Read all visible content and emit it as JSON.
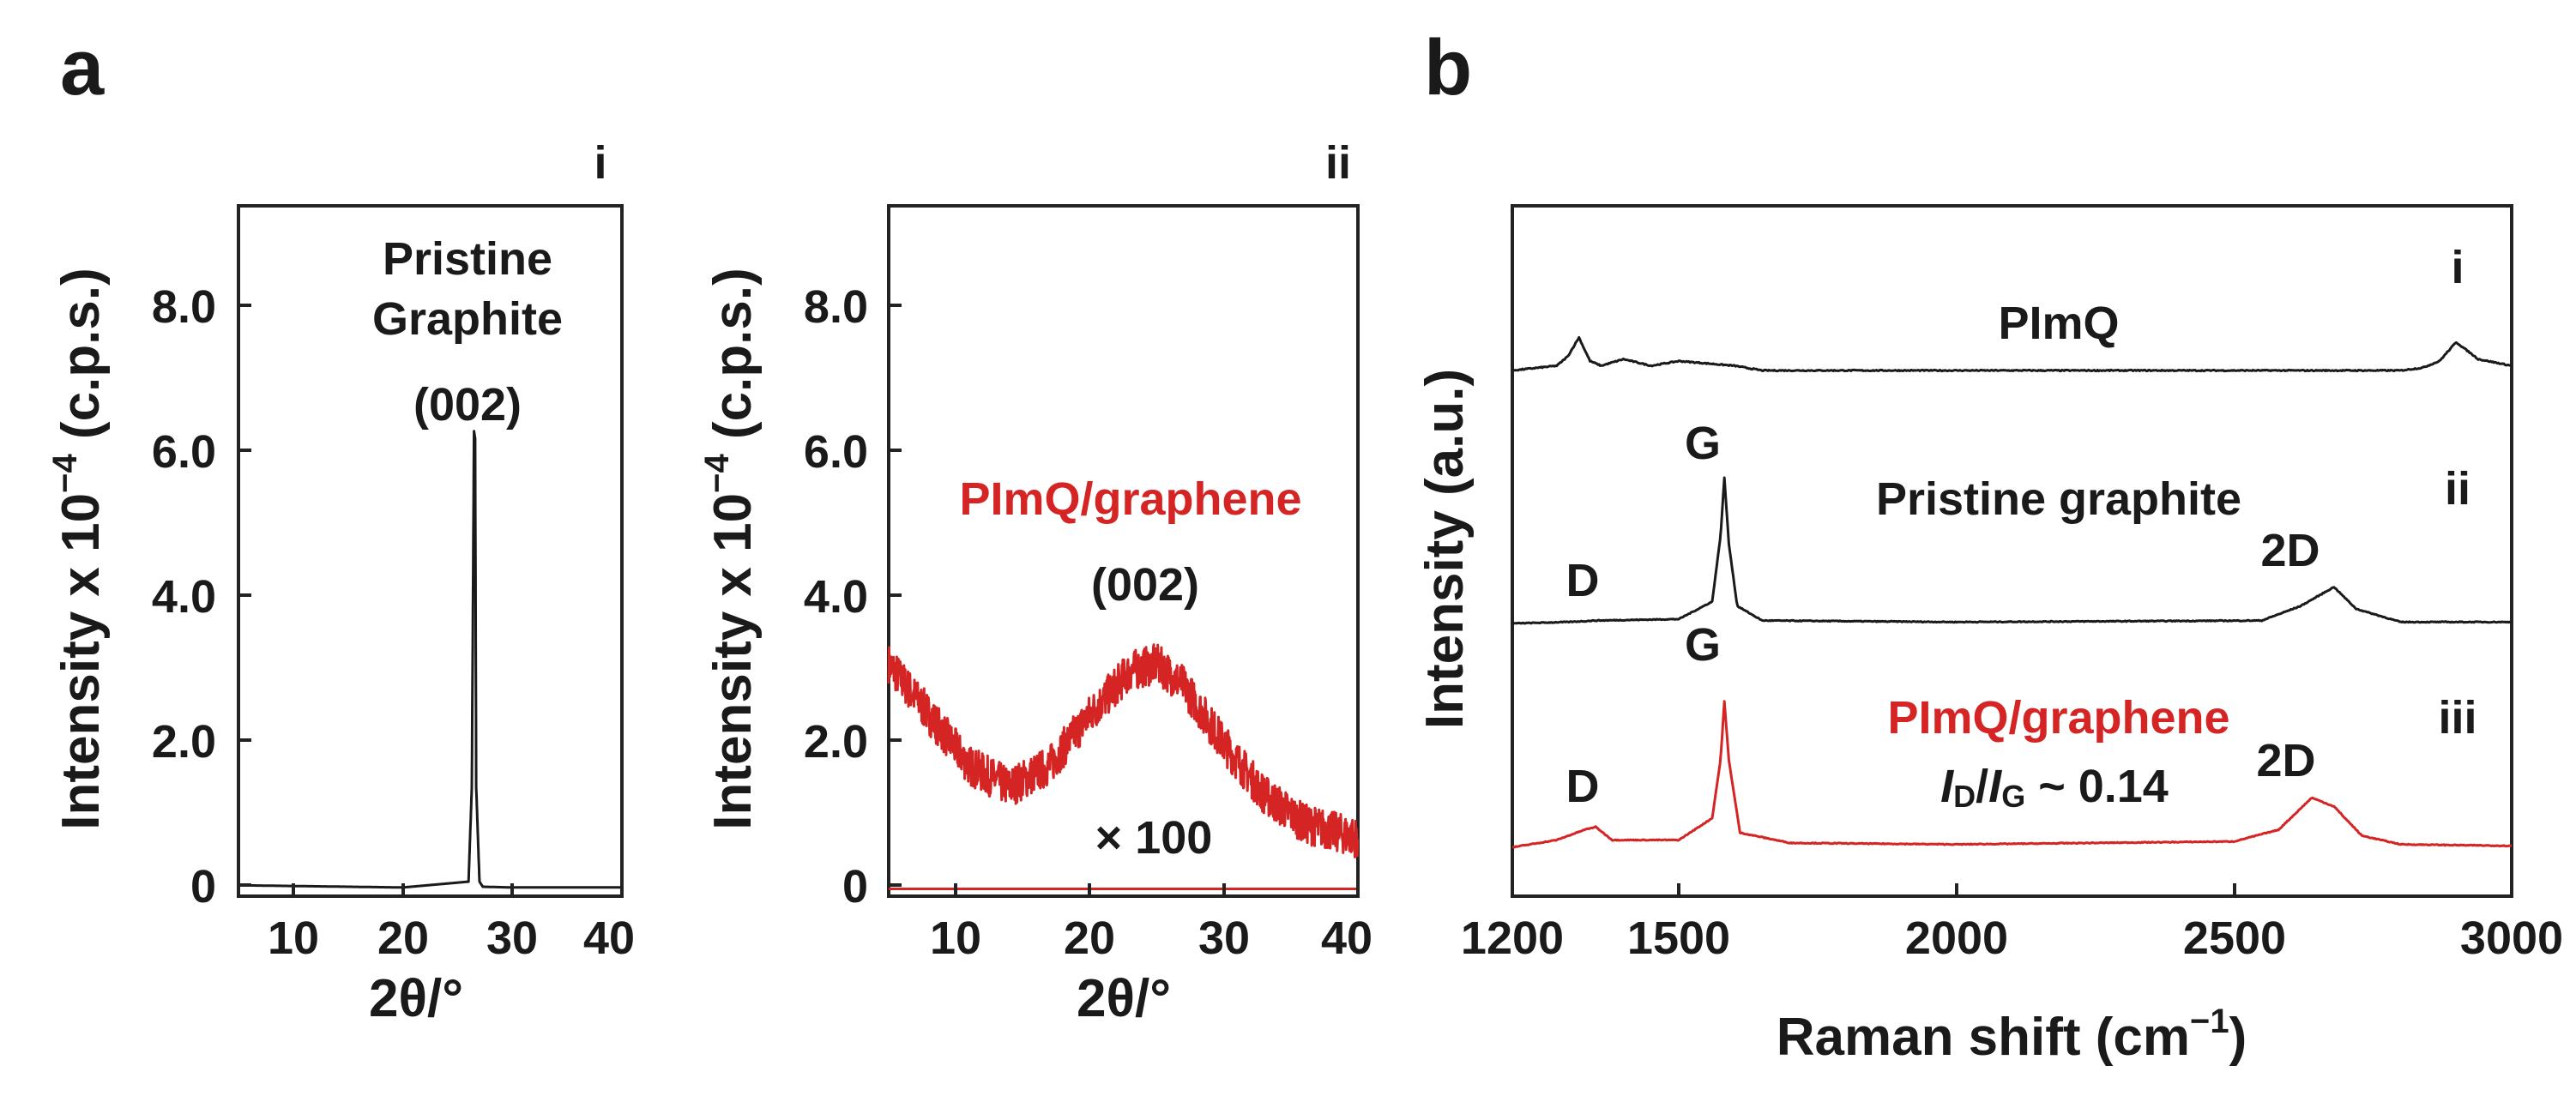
{
  "panels": {
    "a": {
      "letter": "a",
      "i": {
        "roman": "i",
        "xlabel": "2θ/°",
        "ylabel": "Intensity x 10",
        "ylabel_exp": "−4",
        "ylabel_unit": " (c.p.s.)",
        "x_ticks": [
          "10",
          "20",
          "30",
          "40"
        ],
        "y_ticks": [
          "0",
          "2.0",
          "4.0",
          "6.0",
          "8.0"
        ],
        "annotation_line1": "Pristine",
        "annotation_line2": "Graphite",
        "peak_label": "(002)"
      },
      "ii": {
        "roman": "ii",
        "xlabel": "2θ/°",
        "ylabel": "Intensity x 10",
        "ylabel_exp": "−4",
        "ylabel_unit": " (c.p.s.)",
        "x_ticks": [
          "10",
          "20",
          "30",
          "40"
        ],
        "y_ticks": [
          "0",
          "2.0",
          "4.0",
          "6.0",
          "8.0"
        ],
        "sample_label": "PImQ/graphene",
        "peak_label": "(002)",
        "scale_label": "× 100"
      }
    },
    "b": {
      "letter": "b",
      "xlabel": "Raman shift (cm",
      "xlabel_exp": "−1",
      "xlabel_close": ")",
      "ylabel": "Intensity (a.u.)",
      "x_ticks": [
        "1200",
        "1500",
        "2000",
        "2500",
        "3000"
      ],
      "traces": {
        "i": {
          "roman": "i",
          "label": "PImQ"
        },
        "ii": {
          "roman": "ii",
          "label": "Pristine graphite",
          "D": "D",
          "G": "G",
          "twoD": "2D"
        },
        "iii": {
          "roman": "iii",
          "label": "PImQ/graphene",
          "D": "D",
          "G": "G",
          "twoD": "2D",
          "ratio_I1": "I",
          "ratio_sub1": "D",
          "ratio_slash": "/",
          "ratio_I2": "I",
          "ratio_sub2": "G",
          "ratio_value": " ~ 0.14"
        }
      }
    }
  },
  "colors": {
    "black": "#1a1a1a",
    "red": "#d42424"
  },
  "chart_data": [
    {
      "type": "line",
      "title": "a i",
      "xlabel": "2θ/°",
      "ylabel": "Intensity x 10^-4 (c.p.s.)",
      "xlim": [
        5,
        40
      ],
      "ylim": [
        0,
        9.5
      ],
      "series": [
        {
          "name": "Pristine Graphite",
          "color": "#1a1a1a",
          "x": [
            5,
            10,
            20,
            26.0,
            26.3,
            26.5,
            26.6,
            26.7,
            27.0,
            27.3,
            30,
            40
          ],
          "y": [
            0.15,
            0.14,
            0.12,
            0.2,
            1.5,
            6.4,
            6.3,
            1.5,
            0.2,
            0.13,
            0.12,
            0.12
          ]
        }
      ],
      "annotations": [
        "Pristine Graphite",
        "(002)"
      ]
    },
    {
      "type": "line",
      "title": "a ii",
      "xlabel": "2θ/°",
      "ylabel": "Intensity x 10^-4 (c.p.s.)",
      "xlim": [
        5,
        40
      ],
      "ylim": [
        0,
        9.5
      ],
      "series": [
        {
          "name": "PImQ/graphene x100",
          "color": "#d42424",
          "x": [
            5,
            8,
            11,
            14,
            17,
            20,
            23,
            25,
            27,
            30,
            33,
            36,
            40
          ],
          "y": [
            3.2,
            2.5,
            1.8,
            1.5,
            1.8,
            2.5,
            3.1,
            3.2,
            2.9,
            2.1,
            1.4,
            1.0,
            0.8
          ]
        },
        {
          "name": "PImQ/graphene",
          "color": "#d42424",
          "x": [
            5,
            40
          ],
          "y": [
            0.1,
            0.1
          ]
        }
      ],
      "annotations": [
        "PImQ/graphene",
        "(002)",
        "× 100"
      ]
    },
    {
      "type": "line",
      "title": "b",
      "xlabel": "Raman shift (cm^-1)",
      "ylabel": "Intensity (a.u.)",
      "xlim": [
        1200,
        3000
      ],
      "series": [
        {
          "name": "PImQ",
          "color": "#1a1a1a",
          "x": [
            1200,
            1280,
            1300,
            1320,
            1340,
            1360,
            1400,
            1450,
            1500,
            1600,
            1650,
            2800,
            2840,
            2870,
            2900,
            2940,
            3000
          ],
          "y": [
            0.0,
            0.05,
            0.15,
            0.35,
            0.1,
            0.05,
            0.12,
            0.05,
            0.1,
            0.05,
            0.0,
            0.0,
            0.03,
            0.1,
            0.3,
            0.12,
            0.05
          ]
        },
        {
          "name": "Pristine graphite",
          "color": "#1a1a1a",
          "x": [
            1200,
            1300,
            1350,
            1500,
            1560,
            1575,
            1582,
            1590,
            1605,
            1650,
            2000,
            2550,
            2620,
            2680,
            2720,
            2800,
            3000
          ],
          "y": [
            0.0,
            0.01,
            0.02,
            0.03,
            0.15,
            0.6,
            1.0,
            0.55,
            0.12,
            0.02,
            0.01,
            0.02,
            0.12,
            0.25,
            0.1,
            0.01,
            0.01
          ]
        },
        {
          "name": "PImQ/graphene",
          "color": "#d42424",
          "x": [
            1200,
            1280,
            1330,
            1350,
            1380,
            1500,
            1560,
            1575,
            1582,
            1590,
            1610,
            1700,
            2000,
            2500,
            2580,
            2640,
            2680,
            2730,
            2800,
            3000
          ],
          "y": [
            0.0,
            0.05,
            0.12,
            0.14,
            0.05,
            0.05,
            0.2,
            0.6,
            1.0,
            0.6,
            0.1,
            0.03,
            0.02,
            0.04,
            0.12,
            0.34,
            0.28,
            0.08,
            0.02,
            0.01
          ]
        }
      ],
      "annotations": [
        "D",
        "G",
        "2D",
        "I_D/I_G ~ 0.14"
      ]
    }
  ]
}
